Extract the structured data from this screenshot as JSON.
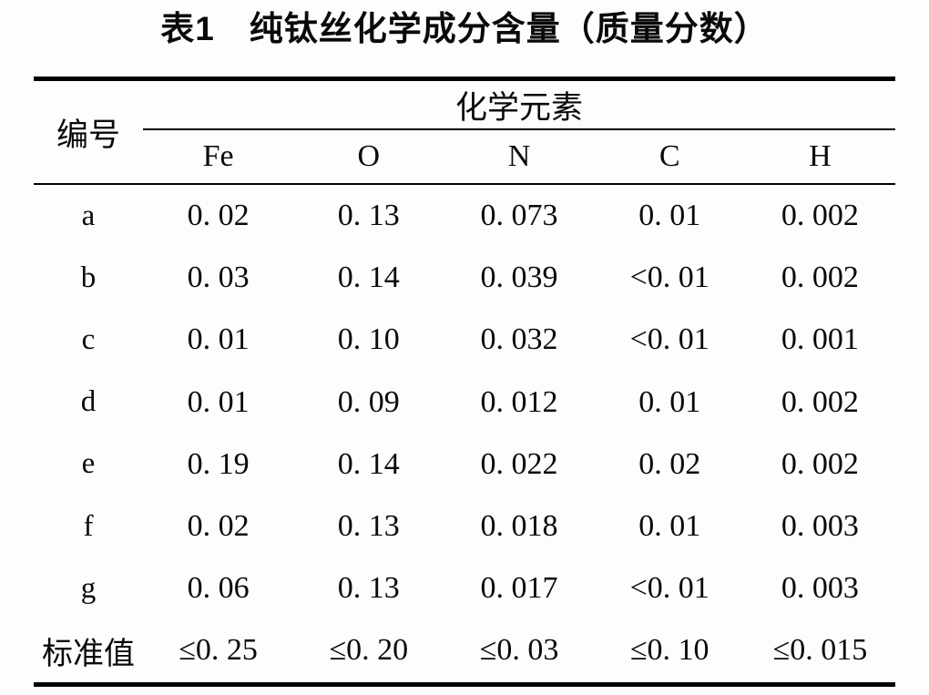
{
  "document": {
    "title": "表1　纯钛丝化学成分含量（质量分数）"
  },
  "table": {
    "corner_header": "编号",
    "group_header": "化学元素",
    "element_headers": [
      "Fe",
      "O",
      "N",
      "C",
      "H"
    ],
    "rows": [
      {
        "label": "a",
        "values": [
          "0. 02",
          "0. 13",
          "0. 073",
          "0. 01",
          "0. 002"
        ]
      },
      {
        "label": "b",
        "values": [
          "0. 03",
          "0. 14",
          "0. 039",
          "<0. 01",
          "0. 002"
        ]
      },
      {
        "label": "c",
        "values": [
          "0. 01",
          "0. 10",
          "0. 032",
          "<0. 01",
          "0. 001"
        ]
      },
      {
        "label": "d",
        "values": [
          "0. 01",
          "0. 09",
          "0. 012",
          "0. 01",
          "0. 002"
        ]
      },
      {
        "label": "e",
        "values": [
          "0. 19",
          "0. 14",
          "0. 022",
          "0. 02",
          "0. 002"
        ]
      },
      {
        "label": "f",
        "values": [
          "0. 02",
          "0. 13",
          "0. 018",
          "0. 01",
          "0. 003"
        ]
      },
      {
        "label": "g",
        "values": [
          "0. 06",
          "0. 13",
          "0. 017",
          "<0. 01",
          "0. 003"
        ]
      },
      {
        "label": "标准值",
        "values": [
          "≤0. 25",
          "≤0. 20",
          "≤0. 03",
          "≤0. 10",
          "≤0. 015"
        ]
      }
    ]
  },
  "colors": {
    "text": "#0a0a0a",
    "rule": "#000000",
    "background": "#fdfdfd"
  }
}
